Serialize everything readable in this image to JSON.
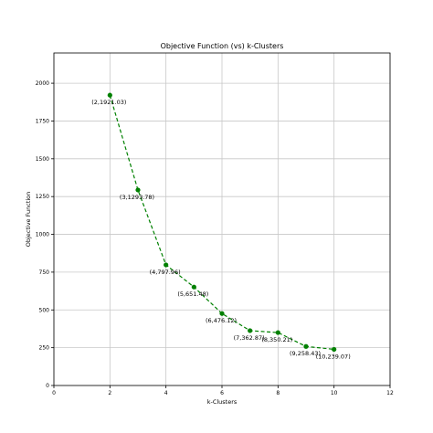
{
  "chart_data": {
    "type": "line",
    "title": "Objective Function (vs) k-Clusters",
    "xlabel": "k-Clusters",
    "ylabel": "Objective Function",
    "xlim": [
      0,
      12
    ],
    "ylim": [
      0,
      2200
    ],
    "xticks": [
      0,
      2,
      4,
      6,
      8,
      10,
      12
    ],
    "yticks": [
      0,
      250,
      500,
      750,
      1000,
      1250,
      1500,
      1750,
      2000
    ],
    "grid": true,
    "series": [
      {
        "color": "#008000",
        "line_style": "dashed",
        "marker": "circle",
        "x": [
          2,
          3,
          4,
          5,
          6,
          7,
          8,
          9,
          10
        ],
        "y": [
          1921.03,
          1293.78,
          797.96,
          651.48,
          476.12,
          362.87,
          350.21,
          258.43,
          239.07
        ]
      }
    ],
    "annotations": [
      "(2,1921.03)",
      "(3,1293.78)",
      "(4,797.96)",
      "(5,651.48)",
      "(6,476.12)",
      "(7,362.87)",
      "(8,350.21)",
      "(9,258.43)",
      "(10,239.07)"
    ]
  }
}
